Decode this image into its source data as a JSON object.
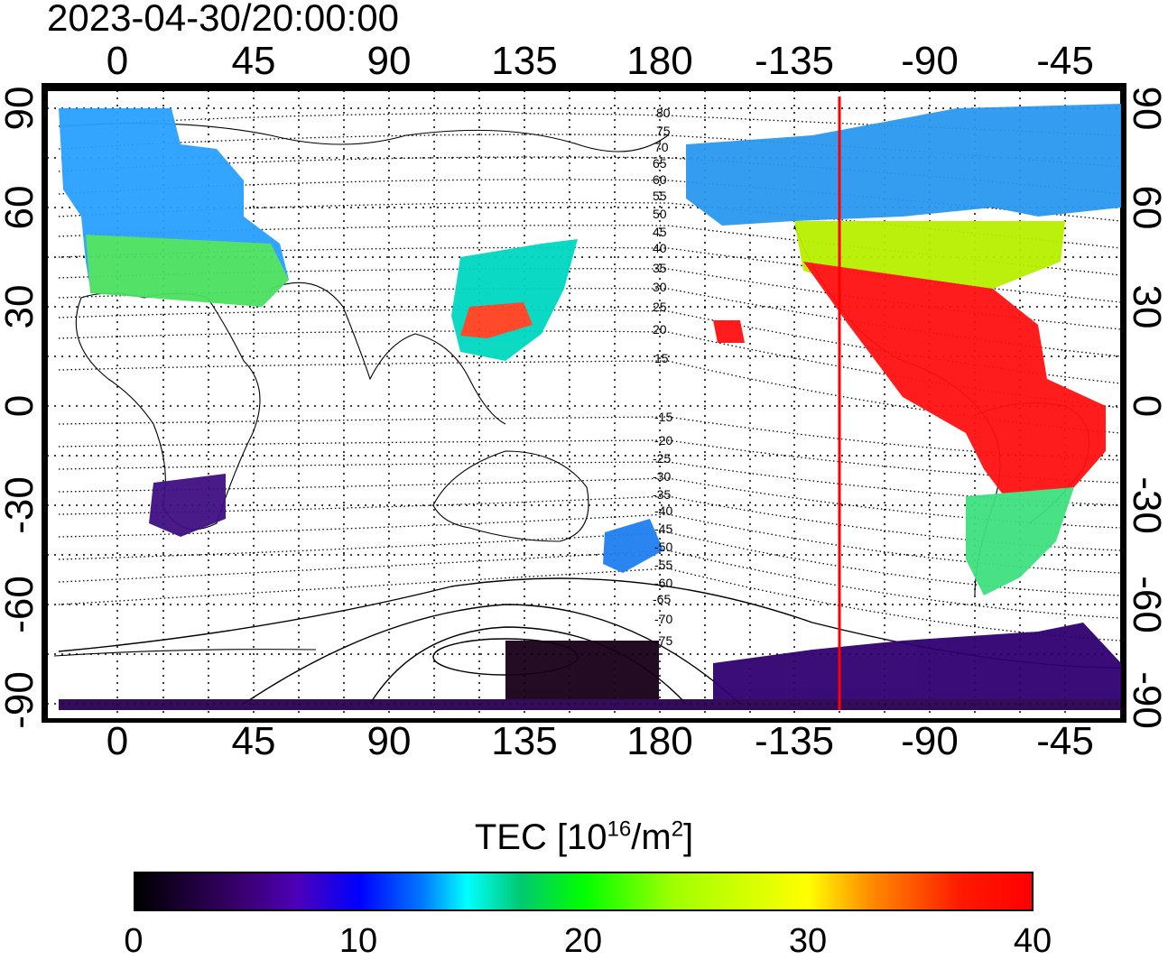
{
  "timestamp": "2023-04-30/20:00:00",
  "map": {
    "top_ticks": [
      "0",
      "45",
      "90",
      "135",
      "180",
      "-135",
      "-90",
      "-45"
    ],
    "bottom_ticks": [
      "0",
      "45",
      "90",
      "135",
      "180",
      "-135",
      "-90",
      "-45"
    ],
    "left_ticks": [
      "90",
      "60",
      "30",
      "0",
      "-30",
      "-60",
      "-90"
    ],
    "right_ticks": [
      "90",
      "60",
      "30",
      "0",
      "-30",
      "-60",
      "-90"
    ],
    "mag_lat_labels": [
      "80",
      "75",
      "70",
      "65",
      "60",
      "55",
      "50",
      "45",
      "40",
      "35",
      "30",
      "25",
      "20",
      "15",
      "-15",
      "-20",
      "-25",
      "-30",
      "-35",
      "-40",
      "-45",
      "-50",
      "-55",
      "-60",
      "-65",
      "-70",
      "-75"
    ],
    "local_time_marker_lon": -120,
    "colors": {
      "marker": "#ff0000",
      "frame": "#000000"
    }
  },
  "colorbar": {
    "title_prefix": "TEC  [10",
    "title_exp1": "16",
    "title_mid": "/m",
    "title_exp2": "2",
    "title_suffix": "]",
    "labels": [
      "0",
      "10",
      "20",
      "30",
      "40"
    ],
    "min": 0,
    "max": 40
  }
}
